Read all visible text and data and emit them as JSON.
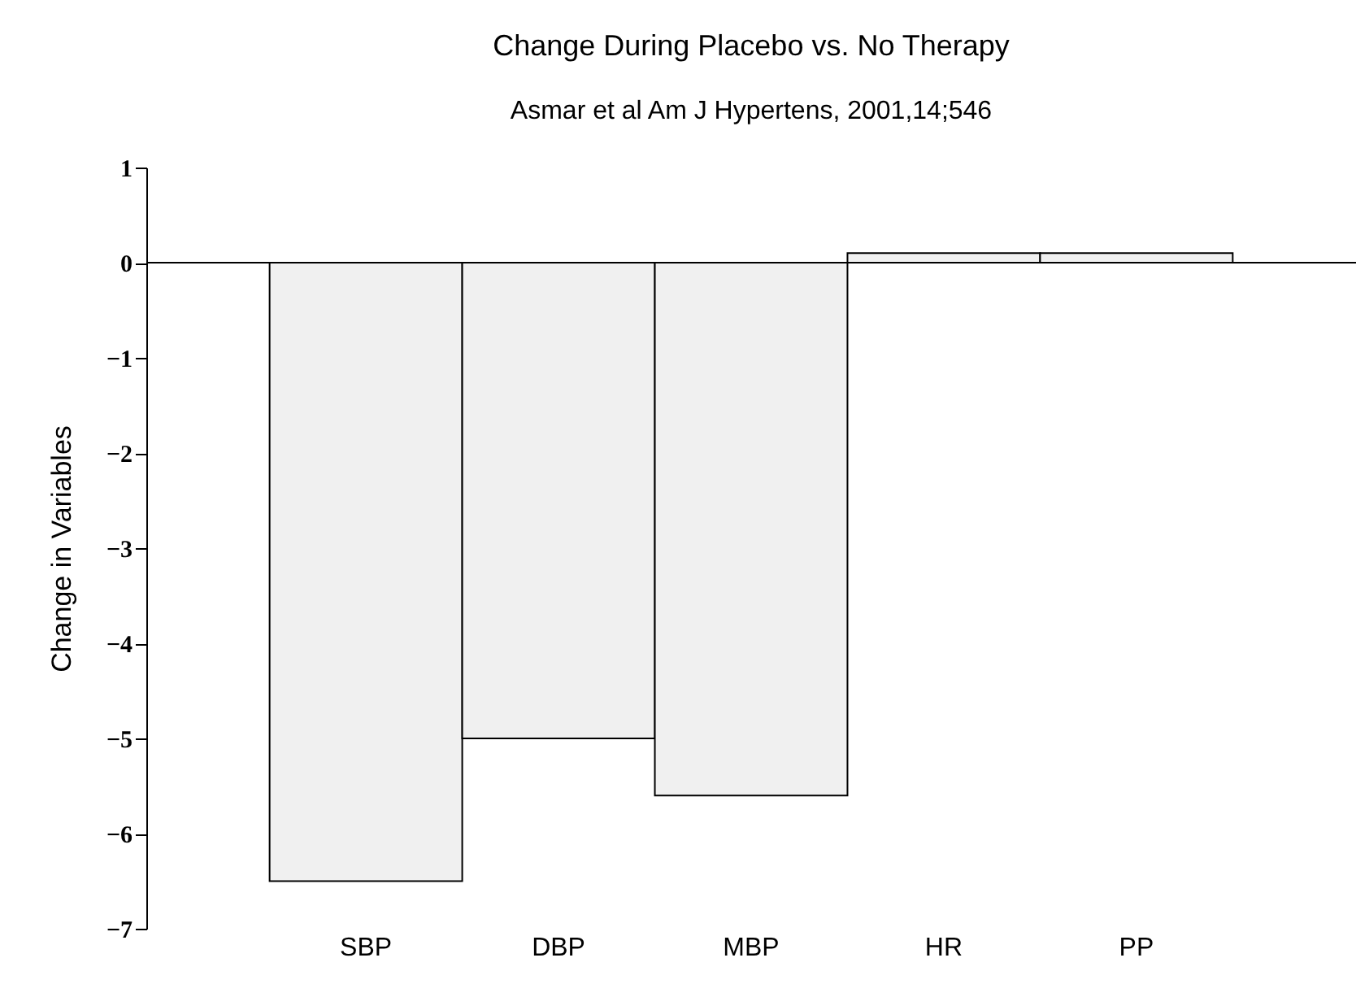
{
  "chart_data": {
    "type": "bar",
    "title": "Change During Placebo vs. No Therapy",
    "subtitle": "Asmar et al Am J Hypertens, 2001,14;546",
    "ylabel": "Change in Variables",
    "categories": [
      "SBP",
      "DBP",
      "MBP",
      "HR",
      "PP"
    ],
    "values": [
      -6.5,
      -5.0,
      -5.6,
      0.1,
      0.1
    ],
    "color": "#f0f0f0",
    "ylim": [
      -7,
      1
    ],
    "yticks": [
      1,
      0,
      -1,
      -2,
      -3,
      -4,
      -5,
      -6,
      -7
    ],
    "ref_lines": [
      {
        "axis": "y",
        "value": 0,
        "color": "#000000"
      }
    ]
  }
}
